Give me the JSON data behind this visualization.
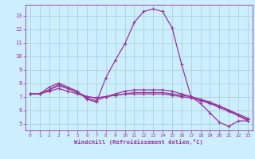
{
  "xlabel": "Windchill (Refroidissement éolien,°C)",
  "bg_color": "#cceeff",
  "grid_color": "#aad4d4",
  "line_color": "#993399",
  "xlim": [
    -0.5,
    23.5
  ],
  "ylim": [
    4.5,
    13.8
  ],
  "xticks": [
    0,
    1,
    2,
    3,
    4,
    5,
    6,
    7,
    8,
    9,
    10,
    11,
    12,
    13,
    14,
    15,
    16,
    17,
    18,
    19,
    20,
    21,
    22,
    23
  ],
  "yticks": [
    5,
    6,
    7,
    8,
    9,
    10,
    11,
    12,
    13
  ],
  "curves": [
    [
      7.2,
      7.2,
      7.7,
      8.0,
      7.7,
      7.4,
      6.8,
      6.6,
      8.4,
      9.7,
      10.9,
      12.5,
      13.3,
      13.5,
      13.3,
      12.1,
      9.4,
      7.0,
      6.5,
      5.8,
      5.1,
      4.8,
      5.2,
      5.2
    ],
    [
      7.2,
      7.2,
      7.5,
      7.9,
      7.6,
      7.3,
      6.9,
      6.7,
      7.0,
      7.2,
      7.4,
      7.5,
      7.5,
      7.5,
      7.5,
      7.4,
      7.2,
      7.0,
      6.8,
      6.6,
      6.3,
      6.0,
      5.7,
      5.4
    ],
    [
      7.2,
      7.2,
      7.5,
      7.8,
      7.6,
      7.3,
      7.0,
      6.9,
      7.0,
      7.1,
      7.2,
      7.3,
      7.3,
      7.3,
      7.3,
      7.2,
      7.1,
      7.0,
      6.8,
      6.5,
      6.3,
      6.0,
      5.6,
      5.3
    ],
    [
      7.2,
      7.2,
      7.4,
      7.6,
      7.4,
      7.2,
      7.0,
      6.9,
      7.0,
      7.1,
      7.2,
      7.2,
      7.2,
      7.2,
      7.2,
      7.1,
      7.0,
      6.9,
      6.7,
      6.5,
      6.2,
      5.9,
      5.6,
      5.2
    ]
  ]
}
